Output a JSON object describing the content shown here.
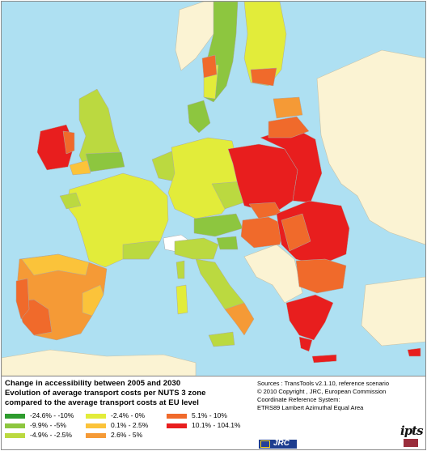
{
  "colors": {
    "sea": "#aee0f2",
    "non_eu": "#fbf3d3",
    "border": "#a9a9a9",
    "frame": "#8c8c8c"
  },
  "title": {
    "line1": "Change in accessibility between 2005 and 2030",
    "line2": "Evolution of average transport costs per NUTS 3 zone",
    "line3": "compared to the average transport costs at EU level"
  },
  "legend": [
    {
      "label": "-24.6% - -10%",
      "color": "#2d9b2d"
    },
    {
      "label": "-9.9% - -5%",
      "color": "#8dc63f"
    },
    {
      "label": "-4.9% - -2.5%",
      "color": "#bbd940"
    },
    {
      "label": "-2.4% - 0%",
      "color": "#e2ec3a"
    },
    {
      "label": "0.1% - 2.5%",
      "color": "#fbc33a"
    },
    {
      "label": "2.6% - 5%",
      "color": "#f59a36"
    },
    {
      "label": "5.1% - 10%",
      "color": "#f06a2b"
    },
    {
      "label": "10.1% - 104.1%",
      "color": "#e81e1e"
    }
  ],
  "sources": {
    "line1": "Sources : TransTools v2.1.10, reference scenario",
    "line2": "© 2010 Copyright , JRC, European Commission",
    "line3": "Coordinate Reference System:",
    "line4": "ETRS89 Lambert Azimuthal Equal Area"
  },
  "logos": {
    "jrc": "JRC",
    "ipts": "ipts"
  }
}
